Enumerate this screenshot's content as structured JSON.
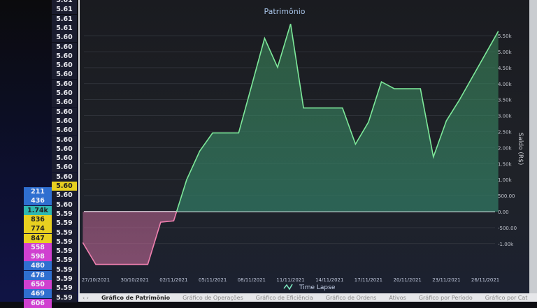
{
  "left_panel": {
    "col2": [
      "5.61",
      "5.61",
      "5.61",
      "5.61",
      "5.60",
      "5.60",
      "5.60",
      "5.60",
      "5.60",
      "5.60",
      "5.60",
      "5.60",
      "5.60",
      "5.60",
      "5.60",
      "5.60",
      "5.60",
      "5.60",
      "5.60",
      "5.60",
      "5.60",
      "5.60",
      "5.60",
      "5.59",
      "5.59",
      "5.59",
      "5.59",
      "5.59",
      "5.59",
      "5.59",
      "5.59",
      "5.59",
      "5.59"
    ],
    "col1": [
      {
        "v": "211",
        "color": "#2f6fd0"
      },
      {
        "v": "436",
        "color": "#2f6fd0"
      },
      {
        "v": "1.74k",
        "color": "#2fb8b0"
      },
      {
        "v": "836",
        "color": "#e8d020"
      },
      {
        "v": "774",
        "color": "#e8d020"
      },
      {
        "v": "847",
        "color": "#e8d020"
      },
      {
        "v": "558",
        "color": "#d040d0"
      },
      {
        "v": "598",
        "color": "#d040d0"
      },
      {
        "v": "480",
        "color": "#2f6fd0"
      },
      {
        "v": "478",
        "color": "#2f6fd0"
      },
      {
        "v": "650",
        "color": "#d040d0"
      },
      {
        "v": "469",
        "color": "#2f6fd0"
      },
      {
        "v": "606",
        "color": "#d040d0"
      }
    ]
  },
  "tabs": [
    "‹ ›",
    "Gráfico de Patrimônio",
    "Gráfico de Operações",
    "Gráfico de Eficiência",
    "Gráfico de Ordens",
    "Ativos",
    "Gráfico por Período",
    "Gráfico por Cat"
  ],
  "chart_data": {
    "type": "area",
    "title": "Patrimônio",
    "ylabel": "Saldo (R$)",
    "legend": "Time Lapse",
    "legend_placement": "bottom",
    "ylim": [
      -1300,
      6000
    ],
    "grid": true,
    "x_ticks": [
      "27/10/2021",
      "30/10/2021",
      "02/11/2021",
      "05/11/2021",
      "08/11/2021",
      "11/11/2021",
      "14/11/2021",
      "17/11/2021",
      "20/11/2021",
      "23/11/2021",
      "26/11/2021"
    ],
    "y_ticks": [
      {
        "v": 5500,
        "l": "5.50k"
      },
      {
        "v": 5000,
        "l": "5.00k"
      },
      {
        "v": 4500,
        "l": "4.50k"
      },
      {
        "v": 4000,
        "l": "4.00k"
      },
      {
        "v": 3500,
        "l": "3.50k"
      },
      {
        "v": 3000,
        "l": "3.00k"
      },
      {
        "v": 2500,
        "l": "2.50k"
      },
      {
        "v": 2000,
        "l": "2.00k"
      },
      {
        "v": 1500,
        "l": "1.50k"
      },
      {
        "v": 1000,
        "l": "1.00k"
      },
      {
        "v": 500,
        "l": "500.00"
      },
      {
        "v": 0,
        "l": "0.00"
      },
      {
        "v": -500,
        "l": "-500.00"
      },
      {
        "v": -1000,
        "l": "-1.00k"
      }
    ],
    "x": [
      "26/10/2021",
      "27/10/2021",
      "31/10/2021",
      "01/11/2021",
      "02/11/2021",
      "03/11/2021",
      "04/11/2021",
      "05/11/2021",
      "07/11/2021",
      "08/11/2021",
      "09/11/2021",
      "10/11/2021",
      "11/11/2021",
      "12/11/2021",
      "15/11/2021",
      "16/11/2021",
      "17/11/2021",
      "18/11/2021",
      "19/11/2021",
      "21/11/2021",
      "22/11/2021",
      "23/11/2021",
      "24/11/2021",
      "27/11/2021"
    ],
    "values": [
      -970,
      -1650,
      -1650,
      -330,
      -290,
      1000,
      1890,
      2460,
      2460,
      3930,
      5420,
      4510,
      5870,
      3240,
      3240,
      2110,
      2800,
      4060,
      3840,
      3840,
      1710,
      2840,
      3490,
      5640
    ],
    "colors": {
      "positive": "#7de89a",
      "negative": "#f080b0"
    }
  }
}
